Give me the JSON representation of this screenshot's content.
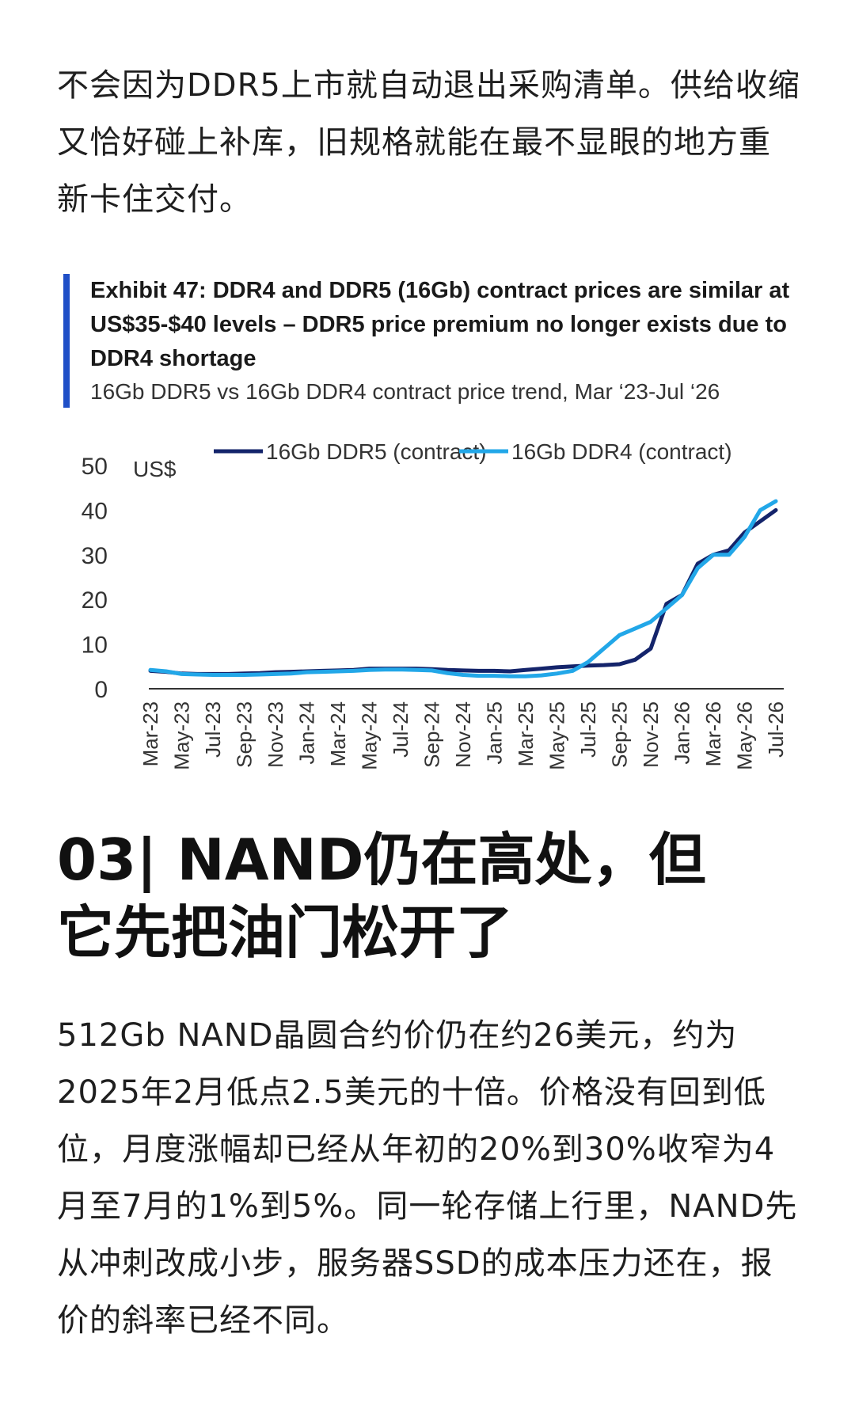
{
  "intro": {
    "text": "不会因为DDR5上市就自动退出采购清单。供给收缩又恰好碰上补库，旧规格就能在最不显眼的地方重新卡住交付。"
  },
  "exhibit": {
    "title": "Exhibit 47: DDR4 and DDR5 (16Gb) contract prices are similar at US$35-$40 levels – DDR5 price premium no longer exists due to DDR4 shortage",
    "subtitle": "16Gb DDR5 vs 16Gb DDR4 contract price trend, Mar ‘23-Jul ‘26"
  },
  "chart_data": {
    "type": "line",
    "ylabel": "US$",
    "ylim": [
      0,
      50
    ],
    "yticks": [
      0,
      10,
      20,
      30,
      40,
      50
    ],
    "legend_position": "top",
    "grid": false,
    "x_tick_labels": [
      "Mar-23",
      "May-23",
      "Jul-23",
      "Sep-23",
      "Nov-23",
      "Jan-24",
      "Mar-24",
      "May-24",
      "Jul-24",
      "Sep-24",
      "Nov-24",
      "Jan-25",
      "Mar-25",
      "May-25",
      "Jul-25",
      "Sep-25",
      "Nov-25",
      "Jan-26",
      "Mar-26",
      "May-26",
      "Jul-26"
    ],
    "x": [
      "Mar-23",
      "Apr-23",
      "May-23",
      "Jun-23",
      "Jul-23",
      "Aug-23",
      "Sep-23",
      "Oct-23",
      "Nov-23",
      "Dec-23",
      "Jan-24",
      "Feb-24",
      "Mar-24",
      "Apr-24",
      "May-24",
      "Jun-24",
      "Jul-24",
      "Aug-24",
      "Sep-24",
      "Oct-24",
      "Nov-24",
      "Dec-24",
      "Jan-25",
      "Feb-25",
      "Mar-25",
      "Apr-25",
      "May-25",
      "Jun-25",
      "Jul-25",
      "Aug-25",
      "Sep-25",
      "Oct-25",
      "Nov-25",
      "Dec-25",
      "Jan-26",
      "Feb-26",
      "Mar-26",
      "Apr-26",
      "May-26",
      "Jun-26",
      "Jul-26"
    ],
    "series": [
      {
        "name": "16Gb DDR5 (contract)",
        "color": "#14246b",
        "values": [
          4.0,
          3.8,
          3.4,
          3.3,
          3.3,
          3.3,
          3.4,
          3.5,
          3.7,
          3.8,
          3.9,
          4.0,
          4.1,
          4.2,
          4.5,
          4.5,
          4.5,
          4.5,
          4.4,
          4.2,
          4.1,
          4.0,
          4.0,
          3.9,
          4.2,
          4.5,
          4.8,
          5.0,
          5.2,
          5.3,
          5.5,
          6.5,
          9.0,
          19.0,
          21.0,
          28.0,
          30.0,
          31.0,
          35.0,
          37.5,
          40.0
        ]
      },
      {
        "name": "16Gb DDR4 (contract)",
        "color": "#22a7e8",
        "values": [
          4.2,
          3.9,
          3.3,
          3.2,
          3.1,
          3.1,
          3.1,
          3.2,
          3.3,
          3.4,
          3.7,
          3.8,
          3.9,
          4.0,
          4.2,
          4.3,
          4.3,
          4.2,
          4.1,
          3.5,
          3.1,
          2.9,
          2.9,
          2.8,
          2.8,
          3.0,
          3.4,
          4.0,
          6.0,
          9.0,
          12.0,
          13.5,
          15.0,
          18.0,
          21.0,
          27.0,
          30.0,
          30.0,
          34.0,
          40.0,
          42.0
        ]
      }
    ]
  },
  "section": {
    "heading_line1": "03| NAND仍在高处，但",
    "heading_line2": "它先把油门松开了"
  },
  "body2": {
    "text": "512Gb NAND晶圆合约价仍在约26美元，约为2025年2月低点2.5美元的十倍。价格没有回到低位，月度涨幅却已经从年初的20%到30%收窄为4月至7月的1%到5%。同一轮存储上行里，NAND先从冲刺改成小步，服务器SSD的成本压力还在，报价的斜率已经不同。"
  }
}
